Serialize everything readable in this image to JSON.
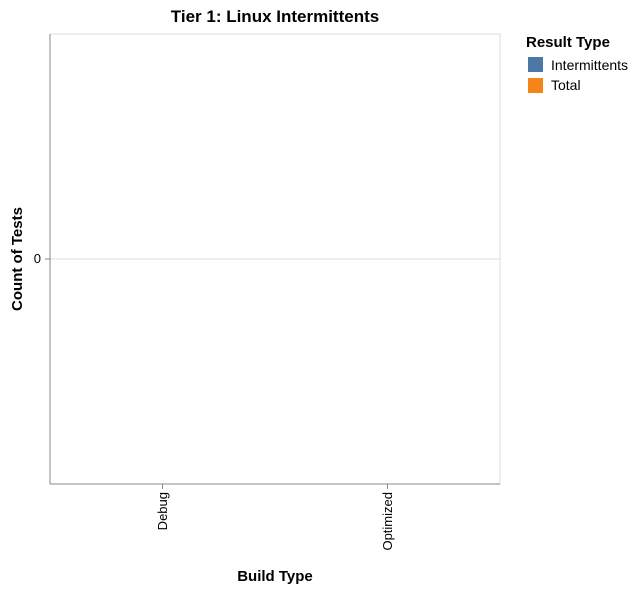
{
  "chart_data": {
    "type": "bar",
    "title": "Tier 1: Linux Intermittents",
    "xlabel": "Build Type",
    "ylabel": "Count of Tests",
    "categories": [
      "Debug",
      "Optimized"
    ],
    "series": [
      {
        "name": "Intermittents",
        "values": [
          0,
          0
        ],
        "color": "#4c78a8"
      },
      {
        "name": "Total",
        "values": [
          0,
          0
        ],
        "color": "#f58518"
      }
    ],
    "y_ticks": [
      "0"
    ],
    "grid": true,
    "legend": {
      "title": "Result Type",
      "placement": "right",
      "items": [
        {
          "label": "Intermittents",
          "color": "#4c78a8"
        },
        {
          "label": "Total",
          "color": "#f58518"
        }
      ]
    }
  }
}
